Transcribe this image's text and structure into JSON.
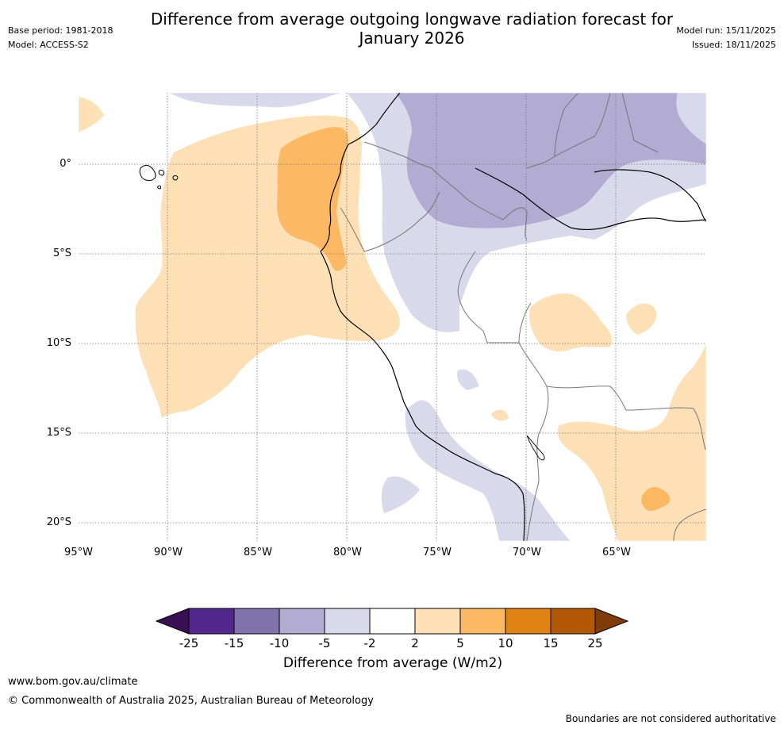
{
  "title_line1": "Difference from average outgoing longwave radiation forecast for",
  "title_line2": "January 2026",
  "meta": {
    "base_period": "Base period: 1981-2018",
    "model": "Model: ACCESS-S2",
    "model_run": "Model run: 15/11/2025",
    "issued": "Issued: 18/11/2025"
  },
  "map": {
    "lon_ticks": [
      "95°W",
      "90°W",
      "85°W",
      "80°W",
      "75°W",
      "70°W",
      "65°W"
    ],
    "lat_ticks": [
      "0°",
      "5°S",
      "10°S",
      "15°S",
      "20°S"
    ]
  },
  "colorbar": {
    "ticks": [
      "-25",
      "-15",
      "-10",
      "-5",
      "-2",
      "2",
      "5",
      "10",
      "15",
      "25"
    ],
    "colors": [
      "#3b0f53",
      "#54278f",
      "#8073ac",
      "#b2abd2",
      "#d8daeb",
      "#ffffff",
      "#fee0b6",
      "#fdb863",
      "#e08214",
      "#b35806",
      "#7f3b08"
    ],
    "label": "Difference from average (W/m2)"
  },
  "footer": {
    "site": "www.bom.gov.au/climate",
    "copyright": "© Commonwealth of Australia 2025, Australian Bureau of Meteorology",
    "disclaimer": "Boundaries are not considered authoritative"
  }
}
